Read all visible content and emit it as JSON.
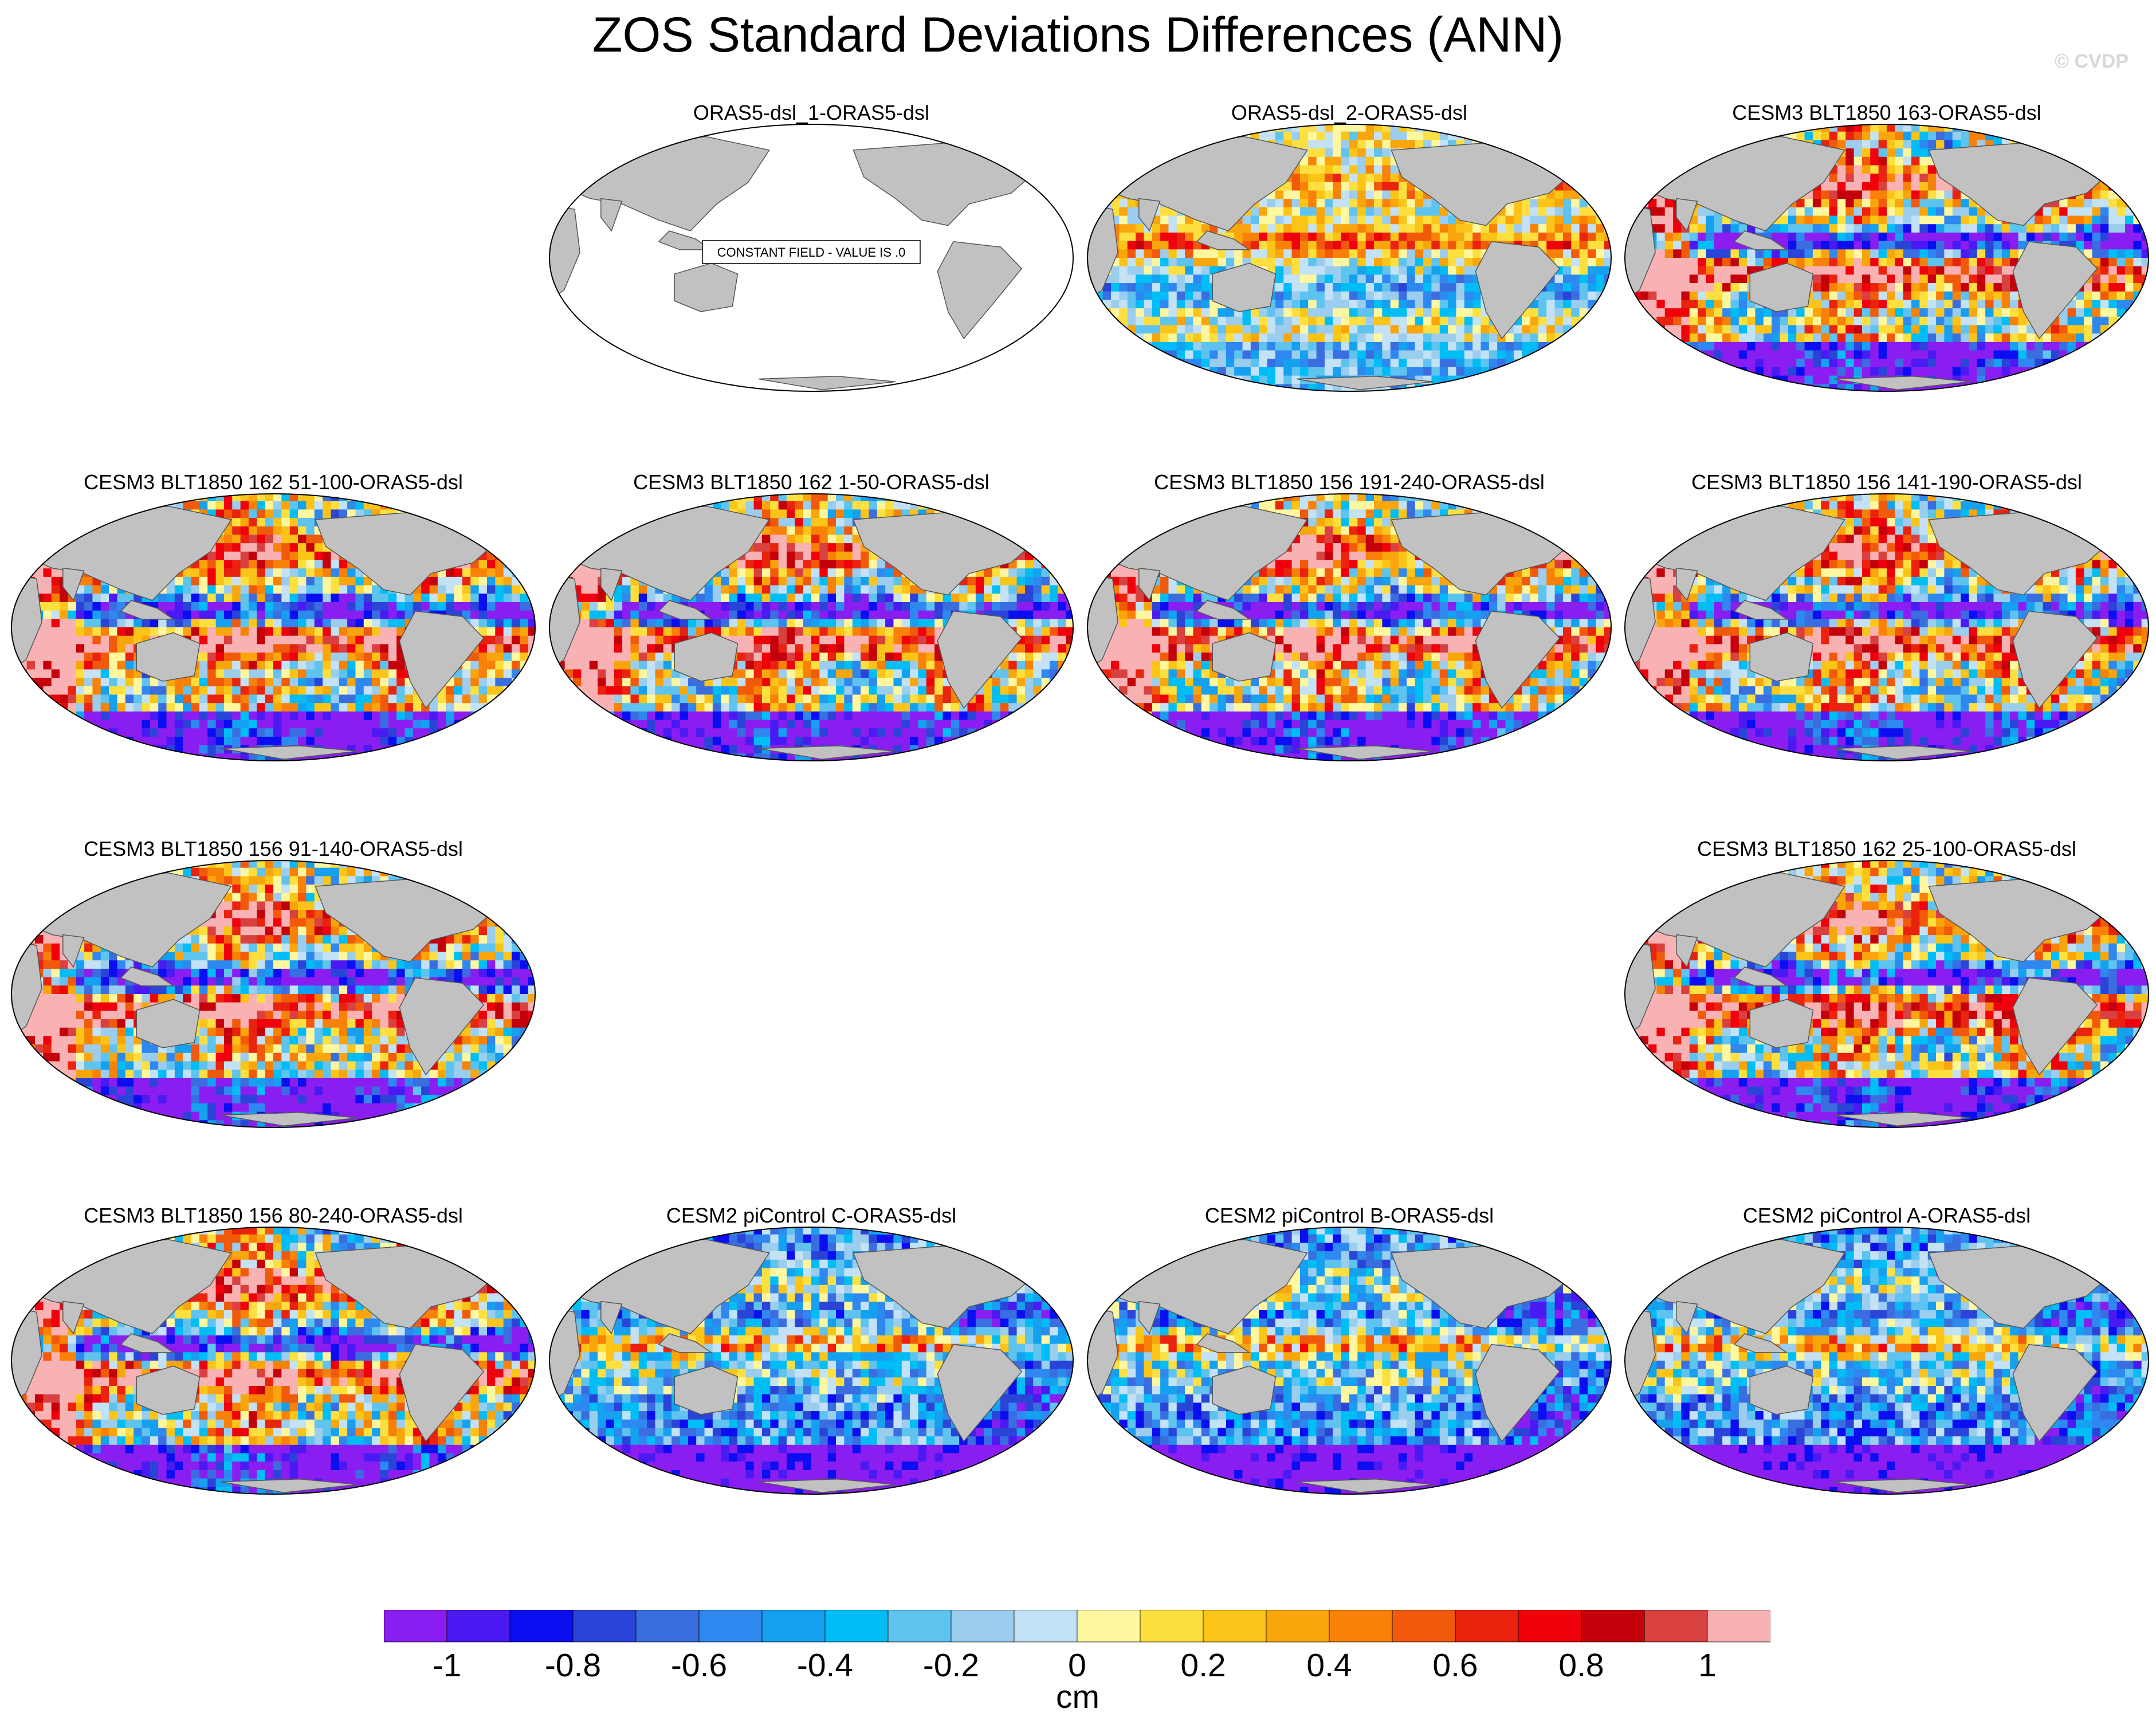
{
  "title": "ZOS Standard Deviations Differences (ANN)",
  "watermark": "© CVDP",
  "constant_field_label": "CONSTANT FIELD - VALUE IS .0",
  "colors": {
    "land": "#c1c1c1",
    "background": "#ffffff",
    "palette": [
      "#8a1ef0",
      "#4b19f2",
      "#0a0ef0",
      "#2b44d8",
      "#3a6ee0",
      "#2e88f0",
      "#15a0f0",
      "#00bdf5",
      "#5ec3ee",
      "#9bcdee",
      "#c3e2f5",
      "#fff7a0",
      "#fde040",
      "#fbc419",
      "#f9a50c",
      "#f88208",
      "#f05a0a",
      "#e9230e",
      "#f0000a",
      "#c4000a",
      "#d94040",
      "#f8b2b4"
    ]
  },
  "chart_data": {
    "type": "heatmap",
    "title": "ZOS Standard Deviations Differences (ANN)",
    "projection": "Robinson, Pacific-centered global maps",
    "variable": "ZOS",
    "units": "cm",
    "colorbar": {
      "label": "cm",
      "levels": [
        -1.1,
        -1.0,
        -0.9,
        -0.8,
        -0.7,
        -0.6,
        -0.5,
        -0.4,
        -0.3,
        -0.2,
        -0.1,
        0,
        0.1,
        0.2,
        0.3,
        0.4,
        0.5,
        0.6,
        0.7,
        0.8,
        0.9,
        1.0,
        1.1
      ],
      "tick_labels": [
        "-1",
        "-0.8",
        "-0.6",
        "-0.4",
        "-0.2",
        "0",
        "0.2",
        "0.4",
        "0.6",
        "0.8",
        "1"
      ],
      "tick_values": [
        -1,
        -0.8,
        -0.6,
        -0.4,
        -0.2,
        0,
        0.2,
        0.4,
        0.6,
        0.8,
        1
      ]
    },
    "panels": [
      {
        "title": "ORAS5-dsl_1-ORAS5-dsl",
        "constant": true,
        "pattern": "constant"
      },
      {
        "title": "ORAS5-dsl_2-ORAS5-dsl",
        "pattern": "mild"
      },
      {
        "title": "CESM3 BLT1850 163-ORAS5-dsl",
        "pattern": "strong"
      },
      {
        "title": "CESM3 BLT1850 162 51-100-ORAS5-dsl",
        "pattern": "strong"
      },
      {
        "title": "CESM3 BLT1850 162 1-50-ORAS5-dsl",
        "pattern": "strong"
      },
      {
        "title": "CESM3 BLT1850 156 191-240-ORAS5-dsl",
        "pattern": "strong"
      },
      {
        "title": "CESM3 BLT1850 156 141-190-ORAS5-dsl",
        "pattern": "strong"
      },
      {
        "title": "CESM3 BLT1850 156 91-140-ORAS5-dsl",
        "pattern": "strong"
      },
      {
        "title": "CESM3 BLT1850 162 25-100-ORAS5-dsl",
        "pattern": "strong"
      },
      {
        "title": "CESM3 BLT1850 156 80-240-ORAS5-dsl",
        "pattern": "strong"
      },
      {
        "title": "CESM2 piControl C-ORAS5-dsl",
        "pattern": "cesm2"
      },
      {
        "title": "CESM2 piControl B-ORAS5-dsl",
        "pattern": "cesm2"
      },
      {
        "title": "CESM2 piControl A-ORAS5-dsl",
        "pattern": "cesm2"
      }
    ]
  }
}
